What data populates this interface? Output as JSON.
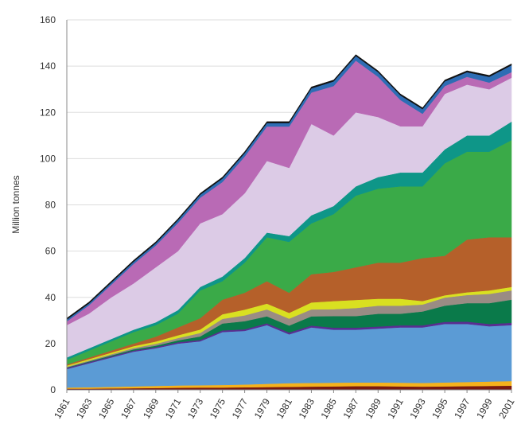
{
  "chart_data": {
    "type": "stacked-area",
    "y_label": "Million tonnes",
    "x": [
      1961,
      1963,
      1965,
      1967,
      1969,
      1971,
      1973,
      1975,
      1977,
      1979,
      1981,
      1983,
      1985,
      1987,
      1989,
      1991,
      1993,
      1995,
      1997,
      1999,
      2001
    ],
    "xlim": [
      1961,
      2001
    ],
    "xticks": [
      1961,
      1963,
      1965,
      1967,
      1969,
      1971,
      1973,
      1975,
      1977,
      1979,
      1981,
      1983,
      1985,
      1987,
      1989,
      1991,
      1993,
      1995,
      1997,
      1999,
      2001
    ],
    "ylim": [
      0,
      160
    ],
    "yticks": [
      0,
      20,
      40,
      60,
      80,
      100,
      120,
      140,
      160
    ],
    "grid": true,
    "series": [
      {
        "color": "#7a1a10",
        "values": [
          0.5,
          0.5,
          0.6,
          0.7,
          0.8,
          0.9,
          1,
          1,
          1.1,
          1.2,
          1.3,
          1.4,
          1.5,
          1.6,
          1.6,
          1.5,
          1.4,
          1.5,
          1.6,
          1.7,
          1.8
        ]
      },
      {
        "color": "#f5b21c",
        "values": [
          0.5,
          0.6,
          0.7,
          0.8,
          0.9,
          1,
          1,
          1.1,
          1.2,
          1.4,
          1.6,
          1.6,
          1.6,
          1.6,
          1.6,
          1.6,
          1.6,
          1.7,
          1.8,
          1.9,
          2
        ]
      },
      {
        "color": "#5b9bd5",
        "values": [
          8,
          10.4,
          12.7,
          15,
          16.3,
          18.1,
          19,
          22.9,
          23.2,
          25.4,
          21.1,
          24,
          22.9,
          22.8,
          23.3,
          23.9,
          24,
          25.3,
          25.1,
          23.9,
          24.2
        ]
      },
      {
        "color": "#5a2d91",
        "values": [
          0.5,
          0.5,
          0.5,
          0.5,
          0.5,
          0.6,
          0.6,
          0.7,
          0.7,
          0.8,
          0.8,
          0.8,
          0.9,
          0.9,
          0.9,
          0.9,
          0.9,
          0.9,
          1,
          1,
          1
        ]
      },
      {
        "color": "#0a7a4a",
        "values": [
          0.2,
          0.3,
          0.4,
          0.5,
          0.6,
          0.8,
          1.5,
          3,
          3.5,
          3,
          3,
          4,
          5,
          5,
          5.5,
          5,
          6,
          7,
          8,
          9,
          10
        ]
      },
      {
        "color": "#9a8c84",
        "values": [
          0.3,
          0.4,
          0.5,
          0.6,
          0.8,
          1,
          1.5,
          2,
          2.5,
          3,
          3,
          3,
          3,
          3.5,
          3.5,
          3.5,
          3,
          3.5,
          3.5,
          4,
          4
        ]
      },
      {
        "color": "#d9e021",
        "values": [
          0.5,
          0.6,
          0.7,
          0.8,
          1,
          1.2,
          1.5,
          2,
          2.5,
          2.5,
          2.5,
          3,
          3.5,
          3.5,
          3,
          3,
          1.5,
          1,
          1.2,
          1.5,
          1.5
        ]
      },
      {
        "color": "#b5602a",
        "values": [
          0.5,
          0.7,
          0.9,
          1.1,
          2.1,
          3.4,
          4.9,
          6.3,
          7.3,
          9.7,
          8.7,
          12.2,
          12.6,
          14.1,
          15.6,
          15.6,
          18.6,
          17.1,
          22.8,
          23,
          21.5
        ]
      },
      {
        "color": "#3aaa48",
        "values": [
          2,
          3,
          4,
          5,
          5,
          6,
          12,
          8,
          13,
          19,
          22,
          22,
          25,
          31,
          32,
          33,
          31,
          40,
          38,
          37,
          42
        ]
      },
      {
        "color": "#0e9688",
        "values": [
          1,
          1,
          1,
          1,
          1.2,
          1.5,
          1.5,
          2,
          2,
          2,
          2.5,
          3.5,
          3.5,
          4,
          5,
          6,
          6,
          6,
          7,
          7,
          8
        ]
      },
      {
        "color": "#dccbe6",
        "values": [
          14,
          15,
          18,
          20,
          23.8,
          25.5,
          27.5,
          27,
          28,
          31,
          29.5,
          39.5,
          30.5,
          32,
          26,
          20,
          20,
          24,
          22,
          20,
          19
        ]
      },
      {
        "color": "#b96ab5",
        "values": [
          1.6,
          3.6,
          5.5,
          8.4,
          9.4,
          12.2,
          11.1,
          13.9,
          15.9,
          14.9,
          17.9,
          13.6,
          21.4,
          22.4,
          17.4,
          11.4,
          5.4,
          3.4,
          3.4,
          2.9,
          2.4
        ]
      },
      {
        "color": "#2e6db4",
        "values": [
          0.8,
          0.8,
          0.9,
          1,
          1,
          1.2,
          1.3,
          1.5,
          1.5,
          1.5,
          1.5,
          1.8,
          2,
          2,
          2,
          2,
          2,
          2,
          2,
          2.5,
          3
        ]
      },
      {
        "color": "#111111",
        "values": [
          0.6,
          0.6,
          0.6,
          0.6,
          0.6,
          0.6,
          0.6,
          0.6,
          0.6,
          0.6,
          0.6,
          0.6,
          0.6,
          0.6,
          0.6,
          0.6,
          0.6,
          0.6,
          0.6,
          0.6,
          0.6
        ]
      }
    ]
  }
}
